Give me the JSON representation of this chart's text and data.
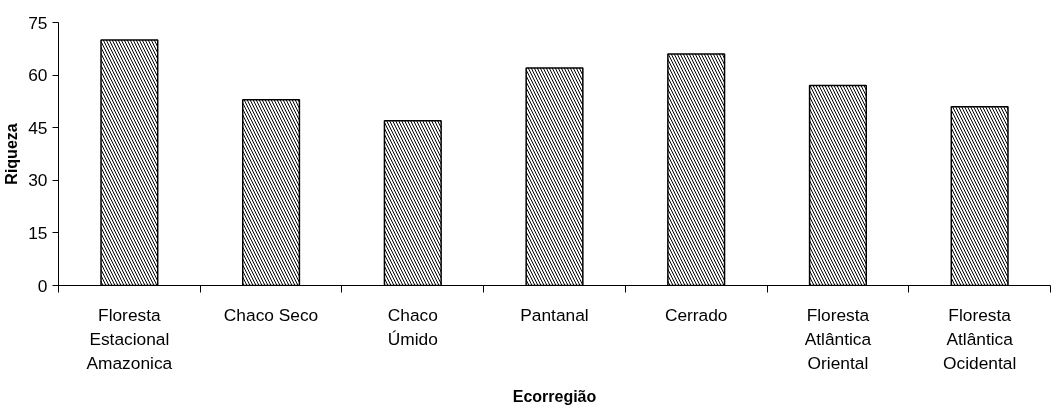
{
  "chart_data": {
    "type": "bar",
    "xlabel": "Ecorregião",
    "ylabel": "Riqueza",
    "categories": [
      "Floresta Estacional Amazonica",
      "Chaco Seco",
      "Chaco Úmido",
      "Pantanal",
      "Cerrado",
      "Floresta Atlântica Oriental",
      "Floresta Atlântica Ocidental"
    ],
    "values": [
      70,
      53,
      47,
      62,
      66,
      57,
      51
    ],
    "color": "#000000",
    "ylim": [
      0,
      75
    ],
    "yticks": [
      0,
      15,
      30,
      45,
      60,
      75
    ],
    "grid": false
  }
}
